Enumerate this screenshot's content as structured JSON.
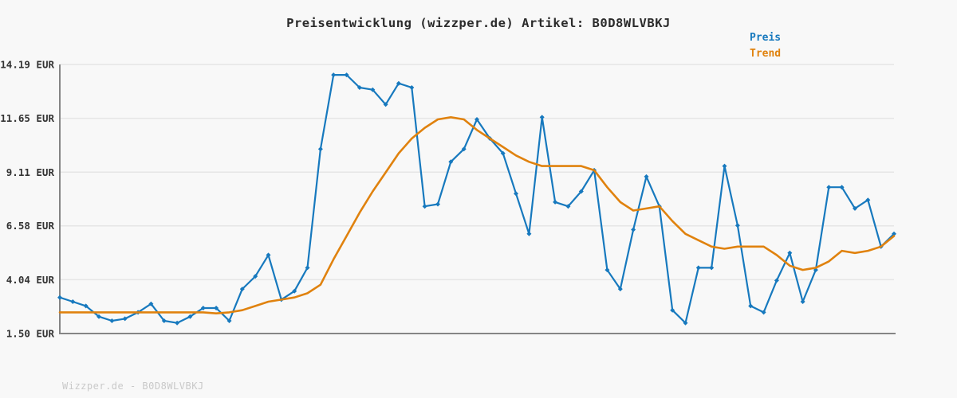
{
  "title": "Preisentwicklung (wizzper.de) Artikel: B0D8WLVBKJ",
  "legend": {
    "price_label": "Preis",
    "trend_label": "Trend"
  },
  "footer": "Wizzper.de - B0D8WLVBKJ",
  "colors": {
    "price": "#1779be",
    "trend": "#e0820e",
    "grid": "#e6e6e6",
    "axis": "#858585",
    "title_text": "#2b2b2b",
    "tick_text": "#333333",
    "footer_text": "#c9c9c9",
    "background": "#f8f8f8"
  },
  "chart_data": {
    "type": "line",
    "title": "Preisentwicklung (wizzper.de) Artikel: B0D8WLVBKJ",
    "xlabel": "",
    "ylabel": "",
    "ylim": [
      1.5,
      14.19
    ],
    "grid": "horizontal-only",
    "legend_position": "top-right",
    "x_tick_labels": "none",
    "yticks": [
      {
        "label": "14.19 EUR",
        "value": 14.19
      },
      {
        "label": "11.65 EUR",
        "value": 11.65
      },
      {
        "label": "9.11 EUR",
        "value": 9.11
      },
      {
        "label": "6.58 EUR",
        "value": 6.58
      },
      {
        "label": "4.04 EUR",
        "value": 4.04
      },
      {
        "label": "1.50 EUR",
        "value": 1.5
      }
    ],
    "series": [
      {
        "name": "Preis",
        "color_key": "price",
        "markers": true,
        "values": [
          3.2,
          3.0,
          2.8,
          2.3,
          2.1,
          2.2,
          2.5,
          2.9,
          2.1,
          2.0,
          2.3,
          2.7,
          2.7,
          2.1,
          3.6,
          4.2,
          5.2,
          3.1,
          3.5,
          4.6,
          10.2,
          13.7,
          13.7,
          13.1,
          13.0,
          12.3,
          13.3,
          13.1,
          7.5,
          7.6,
          9.6,
          10.2,
          11.6,
          10.7,
          10.0,
          8.1,
          6.2,
          11.7,
          7.7,
          7.5,
          8.2,
          9.2,
          4.5,
          3.6,
          6.4,
          8.9,
          7.5,
          2.6,
          2.0,
          4.6,
          4.6,
          9.4,
          6.6,
          2.8,
          2.5,
          4.0,
          5.3,
          3.0,
          4.5,
          8.4,
          8.4,
          7.4,
          7.8,
          5.6,
          6.2
        ]
      },
      {
        "name": "Trend",
        "color_key": "trend",
        "markers": false,
        "values": [
          2.5,
          2.5,
          2.5,
          2.5,
          2.5,
          2.5,
          2.5,
          2.5,
          2.5,
          2.5,
          2.5,
          2.5,
          2.45,
          2.5,
          2.6,
          2.8,
          3.0,
          3.1,
          3.2,
          3.4,
          3.8,
          5.0,
          6.1,
          7.2,
          8.2,
          9.1,
          10.0,
          10.7,
          11.2,
          11.6,
          11.7,
          11.6,
          11.1,
          10.7,
          10.3,
          9.9,
          9.6,
          9.4,
          9.4,
          9.4,
          9.4,
          9.2,
          8.4,
          7.7,
          7.3,
          7.4,
          7.5,
          6.8,
          6.2,
          5.9,
          5.6,
          5.5,
          5.6,
          5.6,
          5.6,
          5.2,
          4.7,
          4.5,
          4.6,
          4.9,
          5.4,
          5.3,
          5.4,
          5.6,
          6.1
        ]
      }
    ]
  }
}
